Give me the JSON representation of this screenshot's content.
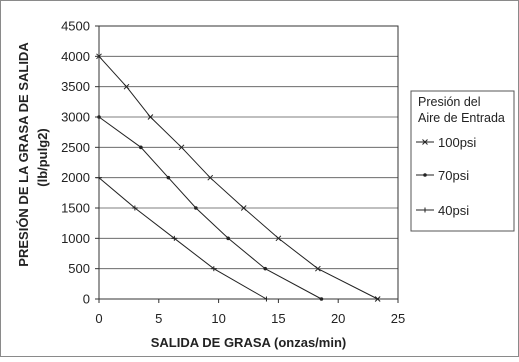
{
  "chart_data": {
    "type": "line",
    "title": "",
    "xlabel": "SALIDA DE GRASA (onzas/min)",
    "ylabel_line1": "PRESIÓN DE LA GRASA DE SALIDA",
    "ylabel_line2": "(lb/pulg2)",
    "xlim": [
      0,
      25
    ],
    "ylim": [
      0,
      4500
    ],
    "x_ticks": [
      "0",
      "5",
      "10",
      "15",
      "20",
      "25"
    ],
    "y_ticks": [
      "0",
      "500",
      "1000",
      "1500",
      "2000",
      "2500",
      "3000",
      "3500",
      "4000",
      "4500"
    ],
    "grid": "horizontal",
    "legend": {
      "title_line1": "Presión del",
      "title_line2": "Aire de Entrada",
      "position": "right"
    },
    "series": [
      {
        "name": "100psi",
        "marker": "x",
        "x": [
          0,
          2.3,
          4.3,
          6.9,
          9.3,
          12.1,
          15.0,
          18.3,
          23.3
        ],
        "y": [
          4000,
          3500,
          3000,
          2500,
          2000,
          1500,
          1000,
          500,
          0
        ]
      },
      {
        "name": "70psi",
        "marker": "dot",
        "x": [
          0,
          3.5,
          5.8,
          8.1,
          10.8,
          13.9,
          18.6
        ],
        "y": [
          3000,
          2500,
          2000,
          1500,
          1000,
          500,
          0
        ]
      },
      {
        "name": "40psi",
        "marker": "plus",
        "x": [
          0,
          3.0,
          6.3,
          9.6,
          14.0
        ],
        "y": [
          2000,
          1500,
          1000,
          500,
          0
        ]
      }
    ]
  }
}
